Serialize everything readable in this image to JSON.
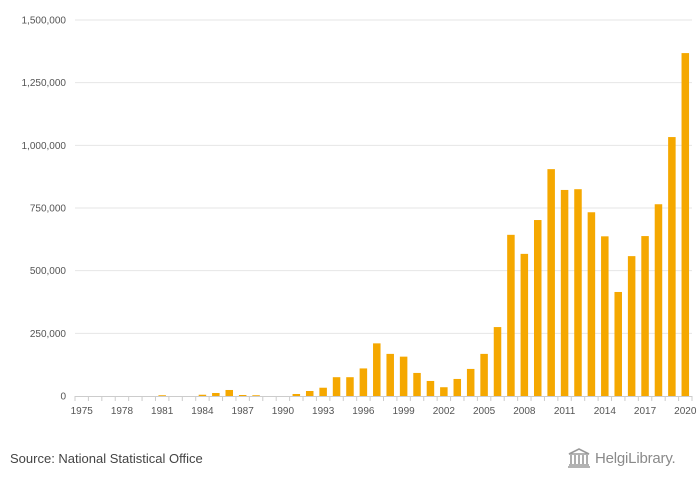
{
  "colors": {
    "bar": "#f5a800",
    "grid": "#e6e6e6",
    "axis": "#cccccc",
    "tick_text": "#555555"
  },
  "chart_data": {
    "type": "bar",
    "categories": [
      "1975",
      "1976",
      "1977",
      "1978",
      "1979",
      "1980",
      "1981",
      "1982",
      "1983",
      "1984",
      "1985",
      "1986",
      "1987",
      "1988",
      "1989",
      "1990",
      "1991",
      "1992",
      "1993",
      "1994",
      "1995",
      "1996",
      "1997",
      "1998",
      "1999",
      "2000",
      "2001",
      "2002",
      "2003",
      "2004",
      "2005",
      "2006",
      "2007",
      "2008",
      "2009",
      "2010",
      "2011",
      "2012",
      "2013",
      "2014",
      "2015",
      "2016",
      "2017",
      "2018",
      "2019",
      "2020"
    ],
    "values": [
      0,
      0,
      0,
      0,
      0,
      0,
      3000,
      0,
      0,
      5000,
      12000,
      24000,
      4000,
      3000,
      0,
      0,
      8000,
      20000,
      33000,
      75000,
      75000,
      110000,
      210000,
      168000,
      157000,
      92000,
      60000,
      35000,
      68000,
      108000,
      168000,
      275000,
      643000,
      567000,
      702000,
      905000,
      822000,
      825000,
      733000,
      637000,
      415000,
      558000,
      638000,
      765000,
      1033000,
      1368000
    ],
    "tick_labels": [
      "1975",
      "1978",
      "1981",
      "1984",
      "1987",
      "1990",
      "1993",
      "1996",
      "1999",
      "2002",
      "2005",
      "2008",
      "2011",
      "2014",
      "2017",
      "2020"
    ],
    "ylim": [
      0,
      1500000
    ],
    "yticks": [
      0,
      250000,
      500000,
      750000,
      1000000,
      1250000,
      1500000
    ],
    "ytick_labels": [
      "0",
      "250,000",
      "500,000",
      "750,000",
      "1,000,000",
      "1,250,000",
      "1,500,000"
    ],
    "grid": true,
    "legend": "none"
  },
  "footer": {
    "source": "Source: National Statistical Office",
    "logo_text": "HelgiLibrary.",
    "logo_icon": "library-building-icon"
  }
}
